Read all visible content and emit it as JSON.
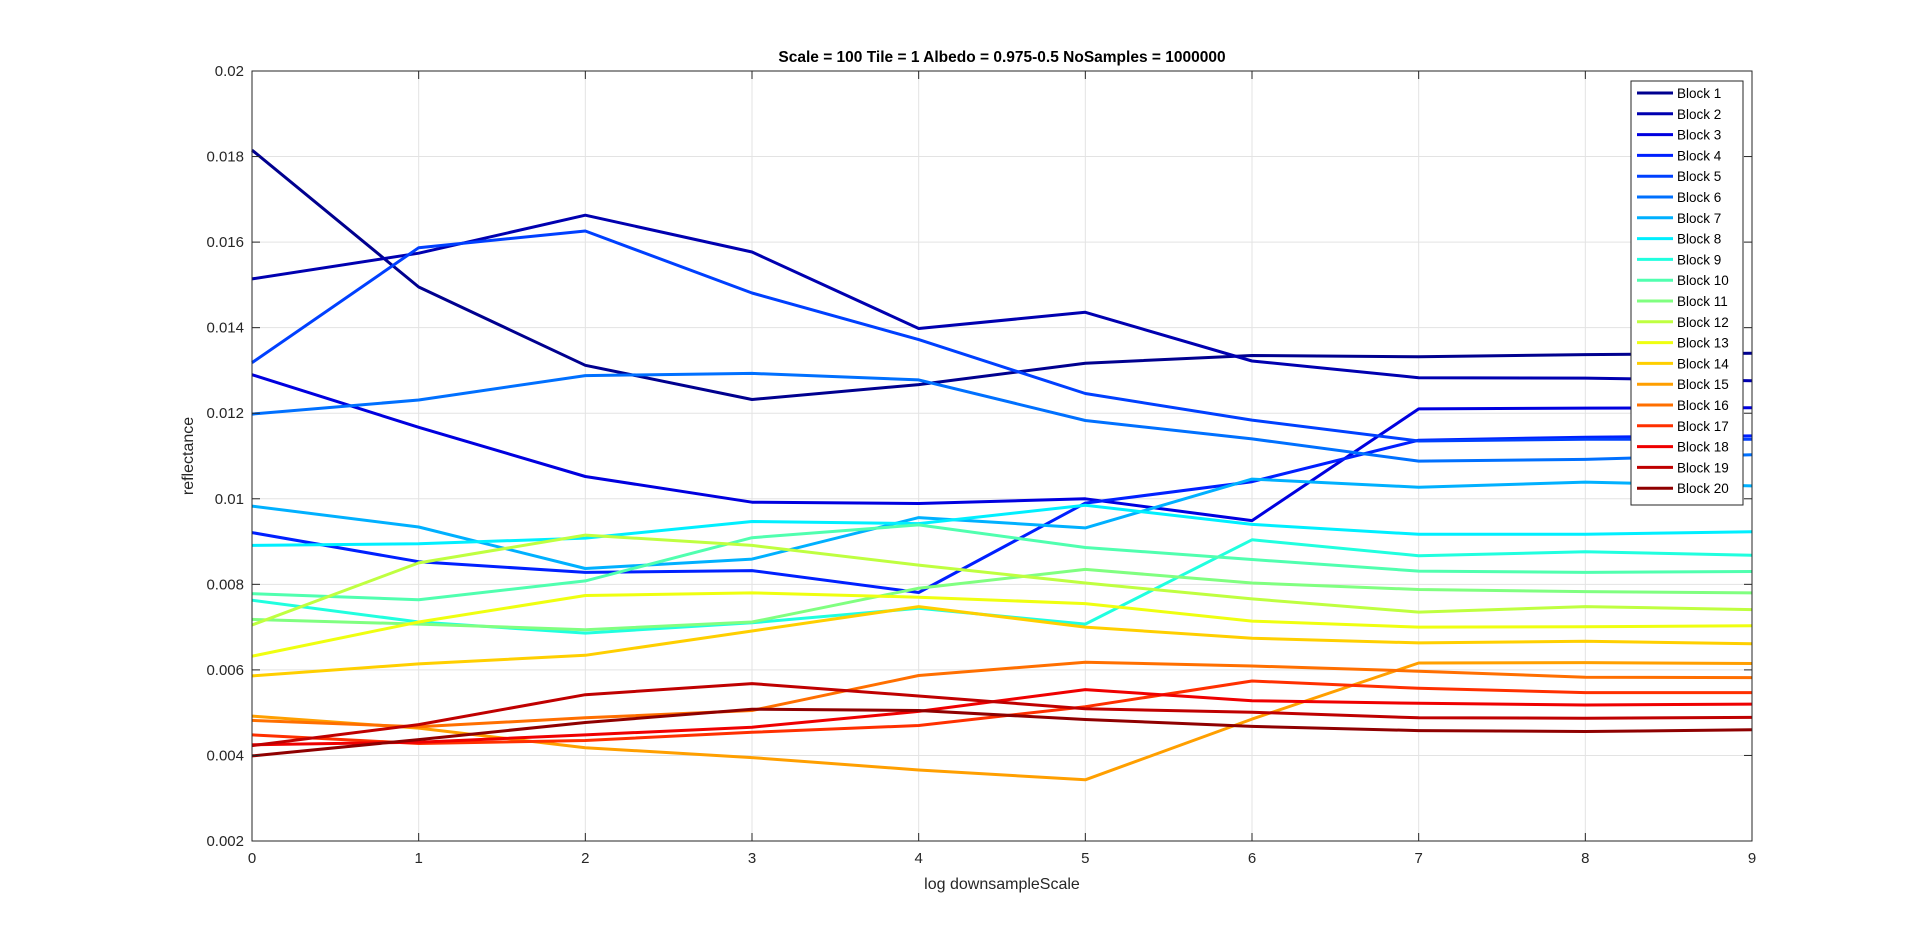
{
  "chart_data": {
    "type": "line",
    "title": "Scale = 100 Tile = 1 Albedo = 0.975-0.5 NoSamples = 1000000",
    "xlabel": "log downsampleScale",
    "ylabel": "reflectance",
    "xlim": [
      0,
      9
    ],
    "ylim": [
      0.002,
      0.02
    ],
    "x": [
      0,
      1,
      2,
      3,
      4,
      5,
      6,
      7,
      8,
      9
    ],
    "xticks": [
      "0",
      "1",
      "2",
      "3",
      "4",
      "5",
      "6",
      "7",
      "8",
      "9"
    ],
    "yticks": [
      "0.002",
      "0.004",
      "0.006",
      "0.008",
      "0.01",
      "0.012",
      "0.014",
      "0.016",
      "0.018",
      "0.02"
    ],
    "grid": true,
    "legend_position": "top-right",
    "series": [
      {
        "name": "Block 1",
        "color": "#00008F",
        "values": [
          0.01815,
          0.01495,
          0.01312,
          0.01232,
          0.01267,
          0.01317,
          0.01335,
          0.01332,
          0.01337,
          0.0134
        ]
      },
      {
        "name": "Block 2",
        "color": "#0000B0",
        "values": [
          0.01514,
          0.01574,
          0.01663,
          0.01577,
          0.01398,
          0.01436,
          0.01322,
          0.01283,
          0.01282,
          0.01276
        ]
      },
      {
        "name": "Block 3",
        "color": "#0000DF",
        "values": [
          0.0129,
          0.01167,
          0.01052,
          0.00992,
          0.00989,
          0.01,
          0.00949,
          0.0121,
          0.01212,
          0.01213
        ]
      },
      {
        "name": "Block 4",
        "color": "#0020FF",
        "values": [
          0.00921,
          0.00853,
          0.00828,
          0.00832,
          0.00781,
          0.0099,
          0.0104,
          0.01137,
          0.01144,
          0.01147
        ]
      },
      {
        "name": "Block 5",
        "color": "#0040FF",
        "values": [
          0.01318,
          0.01587,
          0.01626,
          0.01481,
          0.01372,
          0.01246,
          0.01184,
          0.01135,
          0.01139,
          0.01139
        ]
      },
      {
        "name": "Block 6",
        "color": "#0070FF",
        "values": [
          0.01198,
          0.01231,
          0.01288,
          0.01293,
          0.01278,
          0.01183,
          0.0114,
          0.01088,
          0.01092,
          0.01103
        ]
      },
      {
        "name": "Block 7",
        "color": "#00B0FF",
        "values": [
          0.00983,
          0.00934,
          0.00837,
          0.00859,
          0.00956,
          0.00932,
          0.01046,
          0.01027,
          0.01039,
          0.0103
        ]
      },
      {
        "name": "Block 8",
        "color": "#00EFFF",
        "values": [
          0.00891,
          0.00895,
          0.00908,
          0.00947,
          0.00942,
          0.00985,
          0.0094,
          0.00917,
          0.00917,
          0.00923
        ]
      },
      {
        "name": "Block 9",
        "color": "#20FFDF",
        "values": [
          0.00763,
          0.00712,
          0.00686,
          0.0071,
          0.00744,
          0.00707,
          0.00904,
          0.00867,
          0.00876,
          0.00868
        ]
      },
      {
        "name": "Block 10",
        "color": "#50FFAF",
        "values": [
          0.00778,
          0.00764,
          0.00808,
          0.00909,
          0.00939,
          0.00886,
          0.00858,
          0.00831,
          0.00828,
          0.0083
        ]
      },
      {
        "name": "Block 11",
        "color": "#80FF80",
        "values": [
          0.00718,
          0.00707,
          0.00694,
          0.00712,
          0.00791,
          0.00835,
          0.00803,
          0.00788,
          0.00783,
          0.0078
        ]
      },
      {
        "name": "Block 12",
        "color": "#BFFF40",
        "values": [
          0.00705,
          0.0085,
          0.00915,
          0.00891,
          0.00845,
          0.00803,
          0.00766,
          0.00735,
          0.00748,
          0.00741
        ]
      },
      {
        "name": "Block 13",
        "color": "#EFFF10",
        "values": [
          0.00632,
          0.00712,
          0.00774,
          0.0078,
          0.0077,
          0.00755,
          0.00714,
          0.007,
          0.00701,
          0.00703
        ]
      },
      {
        "name": "Block 14",
        "color": "#FFCF00",
        "values": [
          0.00586,
          0.00614,
          0.00634,
          0.00691,
          0.00748,
          0.007,
          0.00674,
          0.00663,
          0.00667,
          0.00661
        ]
      },
      {
        "name": "Block 15",
        "color": "#FF9F00",
        "values": [
          0.00492,
          0.00464,
          0.00418,
          0.00395,
          0.00366,
          0.00343,
          0.00485,
          0.00616,
          0.00617,
          0.00615
        ]
      },
      {
        "name": "Block 16",
        "color": "#FF6F00",
        "values": [
          0.00482,
          0.00467,
          0.00488,
          0.00505,
          0.00587,
          0.00618,
          0.00609,
          0.00597,
          0.00583,
          0.00582
        ]
      },
      {
        "name": "Block 17",
        "color": "#FF3000",
        "values": [
          0.00448,
          0.00428,
          0.00435,
          0.00454,
          0.0047,
          0.00514,
          0.00574,
          0.00557,
          0.00547,
          0.00547
        ]
      },
      {
        "name": "Block 18",
        "color": "#EF0000",
        "values": [
          0.00425,
          0.00431,
          0.00448,
          0.00466,
          0.00503,
          0.00554,
          0.00528,
          0.00522,
          0.00518,
          0.0052
        ]
      },
      {
        "name": "Block 19",
        "color": "#BF0000",
        "values": [
          0.00423,
          0.00472,
          0.00542,
          0.00568,
          0.00539,
          0.00509,
          0.00501,
          0.00488,
          0.00487,
          0.00489
        ]
      },
      {
        "name": "Block 20",
        "color": "#8F0000",
        "values": [
          0.00399,
          0.00437,
          0.00477,
          0.00508,
          0.00505,
          0.00484,
          0.00468,
          0.00458,
          0.00456,
          0.0046
        ]
      }
    ]
  }
}
